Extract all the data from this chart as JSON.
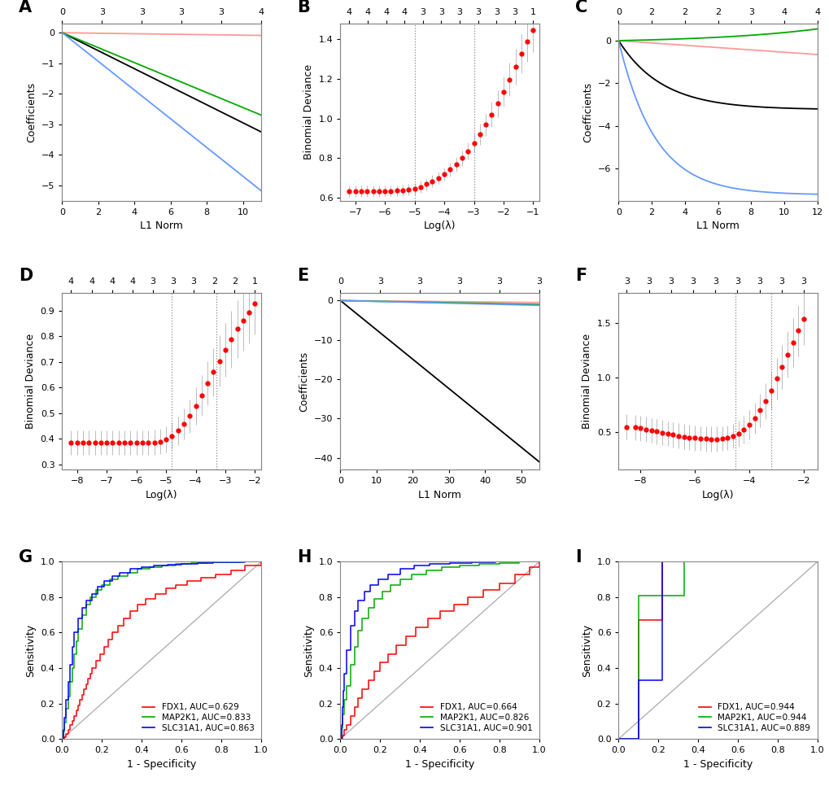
{
  "lasso_line_colors": [
    "#FF9999",
    "#000000",
    "#00AA00",
    "#6699FF"
  ],
  "roc_colors": {
    "FDX1": "#FF0000",
    "MAP2K1": "#00AA00",
    "SLC31A1": "#0000FF"
  },
  "A": {
    "top_labels": [
      "0",
      "3",
      "3",
      "3",
      "3",
      "4"
    ],
    "xlim": [
      0,
      11
    ],
    "ylim": [
      -5.5,
      0.3
    ],
    "xticks": [
      0,
      2,
      4,
      6,
      8,
      10
    ],
    "yticks": [
      0,
      -1,
      -2,
      -3,
      -4,
      -5
    ],
    "xlabel": "L1 Norm",
    "ylabel": "Coefficients",
    "slopes": [
      -0.008,
      -0.295,
      -0.245,
      -0.47
    ]
  },
  "B": {
    "top_labels": [
      "4",
      "4",
      "4",
      "4",
      "3",
      "3",
      "3",
      "3",
      "3",
      "3",
      "1"
    ],
    "xlim": [
      -7.5,
      -0.8
    ],
    "ylim": [
      0.585,
      1.48
    ],
    "xticks": [
      -7,
      -6,
      -5,
      -4,
      -3,
      -2,
      -1
    ],
    "yticks": [
      0.6,
      0.8,
      1.0,
      1.2,
      1.4
    ],
    "xlabel": "Log(λ)",
    "ylabel": "Binomial Deviance",
    "vline1": -5.0,
    "vline2": -3.0,
    "dot_x": [
      -7.2,
      -7.0,
      -6.8,
      -6.6,
      -6.4,
      -6.2,
      -6.0,
      -5.8,
      -5.6,
      -5.4,
      -5.2,
      -5.0,
      -4.8,
      -4.6,
      -4.4,
      -4.2,
      -4.0,
      -3.8,
      -3.6,
      -3.4,
      -3.2,
      -3.0,
      -2.8,
      -2.6,
      -2.4,
      -2.2,
      -2.0,
      -1.8,
      -1.6,
      -1.4,
      -1.2,
      -1.0
    ],
    "dot_y": [
      0.632,
      0.632,
      0.632,
      0.632,
      0.632,
      0.633,
      0.634,
      0.634,
      0.635,
      0.637,
      0.64,
      0.645,
      0.655,
      0.668,
      0.683,
      0.7,
      0.72,
      0.742,
      0.768,
      0.8,
      0.836,
      0.876,
      0.92,
      0.968,
      1.02,
      1.075,
      1.135,
      1.198,
      1.262,
      1.328,
      1.39,
      1.445
    ],
    "err": [
      0.028,
      0.028,
      0.028,
      0.028,
      0.028,
      0.028,
      0.028,
      0.028,
      0.028,
      0.028,
      0.028,
      0.028,
      0.03,
      0.03,
      0.03,
      0.032,
      0.033,
      0.035,
      0.037,
      0.04,
      0.043,
      0.047,
      0.052,
      0.057,
      0.063,
      0.069,
      0.076,
      0.083,
      0.09,
      0.097,
      0.103,
      0.108
    ]
  },
  "C": {
    "top_labels": [
      "0",
      "2",
      "2",
      "2",
      "3",
      "4",
      "4"
    ],
    "xlim": [
      0,
      12
    ],
    "ylim": [
      -7.5,
      0.8
    ],
    "xticks": [
      0,
      2,
      4,
      6,
      8,
      10,
      12
    ],
    "yticks": [
      0,
      -2,
      -4,
      -6
    ],
    "xlabel": "L1 Norm",
    "ylabel": "Coefficients",
    "line_pink_end": -0.65,
    "line_black_end": -3.2,
    "line_green_end": 0.55,
    "line_blue_end": -7.2
  },
  "D": {
    "top_labels": [
      "4",
      "4",
      "4",
      "4",
      "3",
      "3",
      "3",
      "2",
      "2",
      "1"
    ],
    "xlim": [
      -8.5,
      -1.8
    ],
    "ylim": [
      0.28,
      0.97
    ],
    "xticks": [
      -8,
      -7,
      -6,
      -5,
      -4,
      -3,
      -2
    ],
    "yticks": [
      0.3,
      0.4,
      0.5,
      0.6,
      0.7,
      0.8,
      0.9
    ],
    "xlabel": "Log(λ)",
    "ylabel": "Binomial Deviance",
    "vline1": -4.8,
    "vline2": -3.3,
    "dot_x": [
      -8.2,
      -8.0,
      -7.8,
      -7.6,
      -7.4,
      -7.2,
      -7.0,
      -6.8,
      -6.6,
      -6.4,
      -6.2,
      -6.0,
      -5.8,
      -5.6,
      -5.4,
      -5.2,
      -5.0,
      -4.8,
      -4.6,
      -4.4,
      -4.2,
      -4.0,
      -3.8,
      -3.6,
      -3.4,
      -3.2,
      -3.0,
      -2.8,
      -2.6,
      -2.4,
      -2.2,
      -2.0
    ],
    "dot_y": [
      0.385,
      0.385,
      0.385,
      0.385,
      0.385,
      0.385,
      0.385,
      0.385,
      0.385,
      0.385,
      0.385,
      0.385,
      0.385,
      0.385,
      0.387,
      0.39,
      0.398,
      0.412,
      0.432,
      0.458,
      0.49,
      0.528,
      0.57,
      0.616,
      0.66,
      0.704,
      0.748,
      0.788,
      0.828,
      0.862,
      0.893,
      0.928
    ],
    "err_low": [
      0.048,
      0.048,
      0.048,
      0.048,
      0.048,
      0.048,
      0.048,
      0.048,
      0.048,
      0.048,
      0.048,
      0.048,
      0.048,
      0.048,
      0.048,
      0.048,
      0.05,
      0.052,
      0.055,
      0.06,
      0.065,
      0.072,
      0.079,
      0.086,
      0.093,
      0.099,
      0.105,
      0.11,
      0.114,
      0.117,
      0.119,
      0.12
    ],
    "err_high": [
      0.048,
      0.048,
      0.048,
      0.048,
      0.048,
      0.048,
      0.048,
      0.048,
      0.048,
      0.048,
      0.048,
      0.048,
      0.048,
      0.048,
      0.048,
      0.048,
      0.05,
      0.052,
      0.055,
      0.06,
      0.065,
      0.072,
      0.079,
      0.086,
      0.093,
      0.099,
      0.105,
      0.11,
      0.114,
      0.117,
      0.119,
      0.12
    ]
  },
  "E": {
    "top_labels": [
      "0",
      "3",
      "3",
      "3",
      "3",
      "3"
    ],
    "xlim": [
      0,
      55
    ],
    "ylim": [
      -43,
      2
    ],
    "xticks": [
      0,
      10,
      20,
      30,
      40,
      50
    ],
    "yticks": [
      0,
      -10,
      -20,
      -30,
      -40
    ],
    "xlabel": "L1 Norm",
    "ylabel": "Coefficients",
    "slope_pink": -0.009,
    "slope_black": -0.745,
    "slope_green": -0.018,
    "slope_blue": -0.022
  },
  "F": {
    "top_labels": [
      "3",
      "3",
      "3",
      "3",
      "3",
      "3",
      "3",
      "3",
      "3"
    ],
    "xlim": [
      -8.8,
      -1.5
    ],
    "ylim": [
      0.15,
      1.78
    ],
    "xticks": [
      -8,
      -6,
      -4,
      -2
    ],
    "yticks": [
      0.5,
      1.0,
      1.5
    ],
    "xlabel": "Log(λ)",
    "ylabel": "Binomial Deviance",
    "vline1": -4.5,
    "vline2": -3.2,
    "dot_x": [
      -8.5,
      -8.2,
      -8.0,
      -7.8,
      -7.6,
      -7.4,
      -7.2,
      -7.0,
      -6.8,
      -6.6,
      -6.4,
      -6.2,
      -6.0,
      -5.8,
      -5.6,
      -5.4,
      -5.2,
      -5.0,
      -4.8,
      -4.6,
      -4.4,
      -4.2,
      -4.0,
      -3.8,
      -3.6,
      -3.4,
      -3.2,
      -3.0,
      -2.8,
      -2.6,
      -2.4,
      -2.2,
      -2.0
    ],
    "dot_y": [
      0.545,
      0.54,
      0.532,
      0.522,
      0.512,
      0.502,
      0.492,
      0.482,
      0.472,
      0.463,
      0.455,
      0.448,
      0.442,
      0.438,
      0.434,
      0.432,
      0.432,
      0.436,
      0.444,
      0.46,
      0.485,
      0.52,
      0.565,
      0.624,
      0.698,
      0.785,
      0.882,
      0.988,
      1.098,
      1.21,
      1.32,
      1.43,
      1.54
    ],
    "err_low": [
      0.115,
      0.115,
      0.115,
      0.115,
      0.115,
      0.115,
      0.115,
      0.115,
      0.115,
      0.115,
      0.115,
      0.115,
      0.115,
      0.115,
      0.115,
      0.115,
      0.115,
      0.115,
      0.115,
      0.115,
      0.12,
      0.125,
      0.133,
      0.142,
      0.153,
      0.165,
      0.178,
      0.19,
      0.202,
      0.214,
      0.224,
      0.233,
      0.24
    ],
    "err_high": [
      0.115,
      0.115,
      0.115,
      0.115,
      0.115,
      0.115,
      0.115,
      0.115,
      0.115,
      0.115,
      0.115,
      0.115,
      0.115,
      0.115,
      0.115,
      0.115,
      0.115,
      0.115,
      0.115,
      0.115,
      0.12,
      0.125,
      0.133,
      0.142,
      0.153,
      0.165,
      0.178,
      0.19,
      0.202,
      0.214,
      0.224,
      0.233,
      0.24
    ]
  },
  "G": {
    "xlabel": "1 - Specificity",
    "ylabel": "Sensitivity",
    "legend": [
      "FDX1, AUC=0.629",
      "MAP2K1, AUC=0.833",
      "SLC31A1, AUC=0.863"
    ],
    "FDX1_x": [
      0.0,
      0.01,
      0.02,
      0.03,
      0.04,
      0.05,
      0.06,
      0.07,
      0.08,
      0.09,
      0.1,
      0.11,
      0.12,
      0.13,
      0.14,
      0.15,
      0.17,
      0.19,
      0.21,
      0.23,
      0.25,
      0.28,
      0.31,
      0.34,
      0.38,
      0.42,
      0.47,
      0.52,
      0.57,
      0.63,
      0.7,
      0.77,
      0.85,
      0.92,
      1.0
    ],
    "FDX1_y": [
      0.0,
      0.01,
      0.03,
      0.05,
      0.08,
      0.1,
      0.13,
      0.16,
      0.19,
      0.22,
      0.25,
      0.28,
      0.31,
      0.34,
      0.37,
      0.4,
      0.44,
      0.48,
      0.52,
      0.56,
      0.6,
      0.64,
      0.68,
      0.72,
      0.76,
      0.79,
      0.82,
      0.85,
      0.87,
      0.89,
      0.91,
      0.93,
      0.95,
      0.98,
      1.0
    ],
    "MAP2K1_x": [
      0.0,
      0.005,
      0.01,
      0.02,
      0.03,
      0.04,
      0.05,
      0.06,
      0.07,
      0.08,
      0.1,
      0.12,
      0.14,
      0.17,
      0.2,
      0.24,
      0.28,
      0.33,
      0.38,
      0.44,
      0.5,
      0.57,
      0.65,
      0.73,
      0.82,
      0.9,
      1.0
    ],
    "MAP2K1_y": [
      0.0,
      0.04,
      0.09,
      0.17,
      0.24,
      0.32,
      0.4,
      0.48,
      0.55,
      0.62,
      0.7,
      0.76,
      0.8,
      0.84,
      0.87,
      0.9,
      0.92,
      0.94,
      0.96,
      0.97,
      0.98,
      0.99,
      0.995,
      0.998,
      0.999,
      1.0,
      1.0
    ],
    "SLC31A1_x": [
      0.0,
      0.005,
      0.01,
      0.02,
      0.03,
      0.04,
      0.05,
      0.06,
      0.08,
      0.1,
      0.12,
      0.15,
      0.18,
      0.21,
      0.25,
      0.29,
      0.34,
      0.4,
      0.46,
      0.53,
      0.6,
      0.68,
      0.76,
      0.84,
      0.92,
      1.0
    ],
    "SLC31A1_y": [
      0.0,
      0.05,
      0.12,
      0.22,
      0.32,
      0.42,
      0.52,
      0.6,
      0.68,
      0.74,
      0.78,
      0.82,
      0.86,
      0.89,
      0.92,
      0.94,
      0.96,
      0.97,
      0.98,
      0.985,
      0.99,
      0.994,
      0.997,
      0.999,
      1.0,
      1.0
    ]
  },
  "H": {
    "xlabel": "1 - Specificity",
    "ylabel": "Sensitivity",
    "legend": [
      "FDX1, AUC=0.664",
      "MAP2K1, AUC=0.826",
      "SLC31A1, AUC=0.901"
    ],
    "FDX1_x": [
      0.0,
      0.01,
      0.02,
      0.03,
      0.05,
      0.07,
      0.09,
      0.11,
      0.14,
      0.17,
      0.2,
      0.24,
      0.28,
      0.33,
      0.38,
      0.44,
      0.5,
      0.57,
      0.64,
      0.72,
      0.8,
      0.88,
      0.95,
      1.0
    ],
    "FDX1_y": [
      0.0,
      0.02,
      0.05,
      0.08,
      0.13,
      0.18,
      0.23,
      0.28,
      0.33,
      0.38,
      0.43,
      0.48,
      0.53,
      0.58,
      0.63,
      0.68,
      0.72,
      0.76,
      0.8,
      0.84,
      0.88,
      0.93,
      0.97,
      1.0
    ],
    "MAP2K1_x": [
      0.0,
      0.005,
      0.01,
      0.02,
      0.03,
      0.05,
      0.07,
      0.09,
      0.11,
      0.14,
      0.17,
      0.21,
      0.25,
      0.3,
      0.36,
      0.43,
      0.51,
      0.6,
      0.7,
      0.8,
      0.9,
      1.0
    ],
    "MAP2K1_y": [
      0.0,
      0.06,
      0.14,
      0.22,
      0.3,
      0.42,
      0.52,
      0.61,
      0.68,
      0.74,
      0.79,
      0.83,
      0.87,
      0.9,
      0.93,
      0.95,
      0.97,
      0.98,
      0.99,
      0.995,
      1.0,
      1.0
    ],
    "SLC31A1_x": [
      0.0,
      0.005,
      0.01,
      0.015,
      0.02,
      0.03,
      0.05,
      0.07,
      0.09,
      0.12,
      0.15,
      0.19,
      0.24,
      0.3,
      0.37,
      0.45,
      0.55,
      0.66,
      0.78,
      0.9,
      1.0
    ],
    "SLC31A1_y": [
      0.0,
      0.08,
      0.18,
      0.27,
      0.37,
      0.5,
      0.64,
      0.72,
      0.78,
      0.83,
      0.87,
      0.9,
      0.93,
      0.96,
      0.98,
      0.99,
      0.995,
      0.998,
      1.0,
      1.0,
      1.0
    ]
  },
  "I": {
    "xlabel": "1 - Specificity",
    "ylabel": "Sensitivity",
    "legend": [
      "FDX1, AUC=0.944",
      "MAP2K1, AUC=0.944",
      "SLC31A1, AUC=0.889"
    ],
    "FDX1_x": [
      0.0,
      0.1,
      0.1,
      0.22,
      0.22,
      1.0
    ],
    "FDX1_y": [
      0.0,
      0.0,
      0.67,
      0.67,
      1.0,
      1.0
    ],
    "MAP2K1_x": [
      0.0,
      0.1,
      0.1,
      0.33,
      0.33,
      1.0
    ],
    "MAP2K1_y": [
      0.0,
      0.0,
      0.81,
      0.81,
      1.0,
      1.0
    ],
    "SLC31A1_x": [
      0.0,
      0.1,
      0.1,
      0.22,
      0.22,
      1.0
    ],
    "SLC31A1_y": [
      0.0,
      0.0,
      0.33,
      0.33,
      1.0,
      1.0
    ]
  }
}
